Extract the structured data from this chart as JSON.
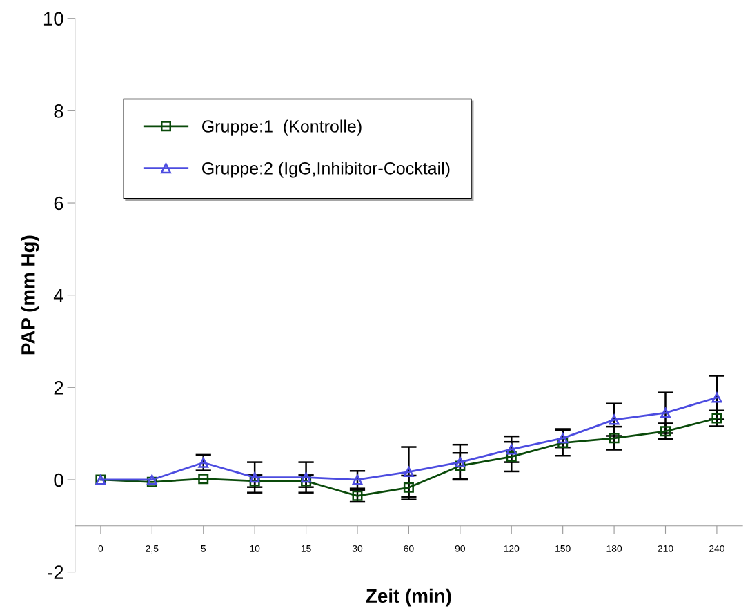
{
  "chart_data": {
    "type": "line",
    "xlabel": "Zeit (min)",
    "ylabel": "PAP (mm Hg)",
    "categories": [
      "0",
      "2,5",
      "5",
      "10",
      "15",
      "30",
      "60",
      "90",
      "120",
      "150",
      "180",
      "210",
      "240"
    ],
    "series": [
      {
        "name": "Gruppe:1  (Kontrolle)",
        "color": "#0a4a0a",
        "marker": "square",
        "values": [
          0,
          -0.05,
          0.02,
          -0.03,
          -0.03,
          -0.35,
          -0.17,
          0.3,
          0.5,
          0.8,
          0.9,
          1.05,
          1.33
        ],
        "errors": [
          null,
          null,
          null,
          0.13,
          0.13,
          0.13,
          0.26,
          0.28,
          0.32,
          0.28,
          0.25,
          0.17,
          0.17
        ]
      },
      {
        "name": "Gruppe:2 (IgG,Inhibitor-Cocktail)",
        "color": "#4c4ce0",
        "marker": "triangle",
        "values": [
          0,
          0,
          0.37,
          0.05,
          0.05,
          0.0,
          0.17,
          0.38,
          0.66,
          0.9,
          1.3,
          1.45,
          1.78
        ],
        "errors": [
          null,
          null,
          0.17,
          0.33,
          0.33,
          0.19,
          0.54,
          0.38,
          0.28,
          0.2,
          0.35,
          0.44,
          0.47
        ]
      }
    ],
    "ylim": [
      -2,
      10
    ],
    "yticks": [
      -2,
      0,
      2,
      4,
      6,
      8,
      10
    ],
    "grid": false,
    "legend": "top left"
  }
}
